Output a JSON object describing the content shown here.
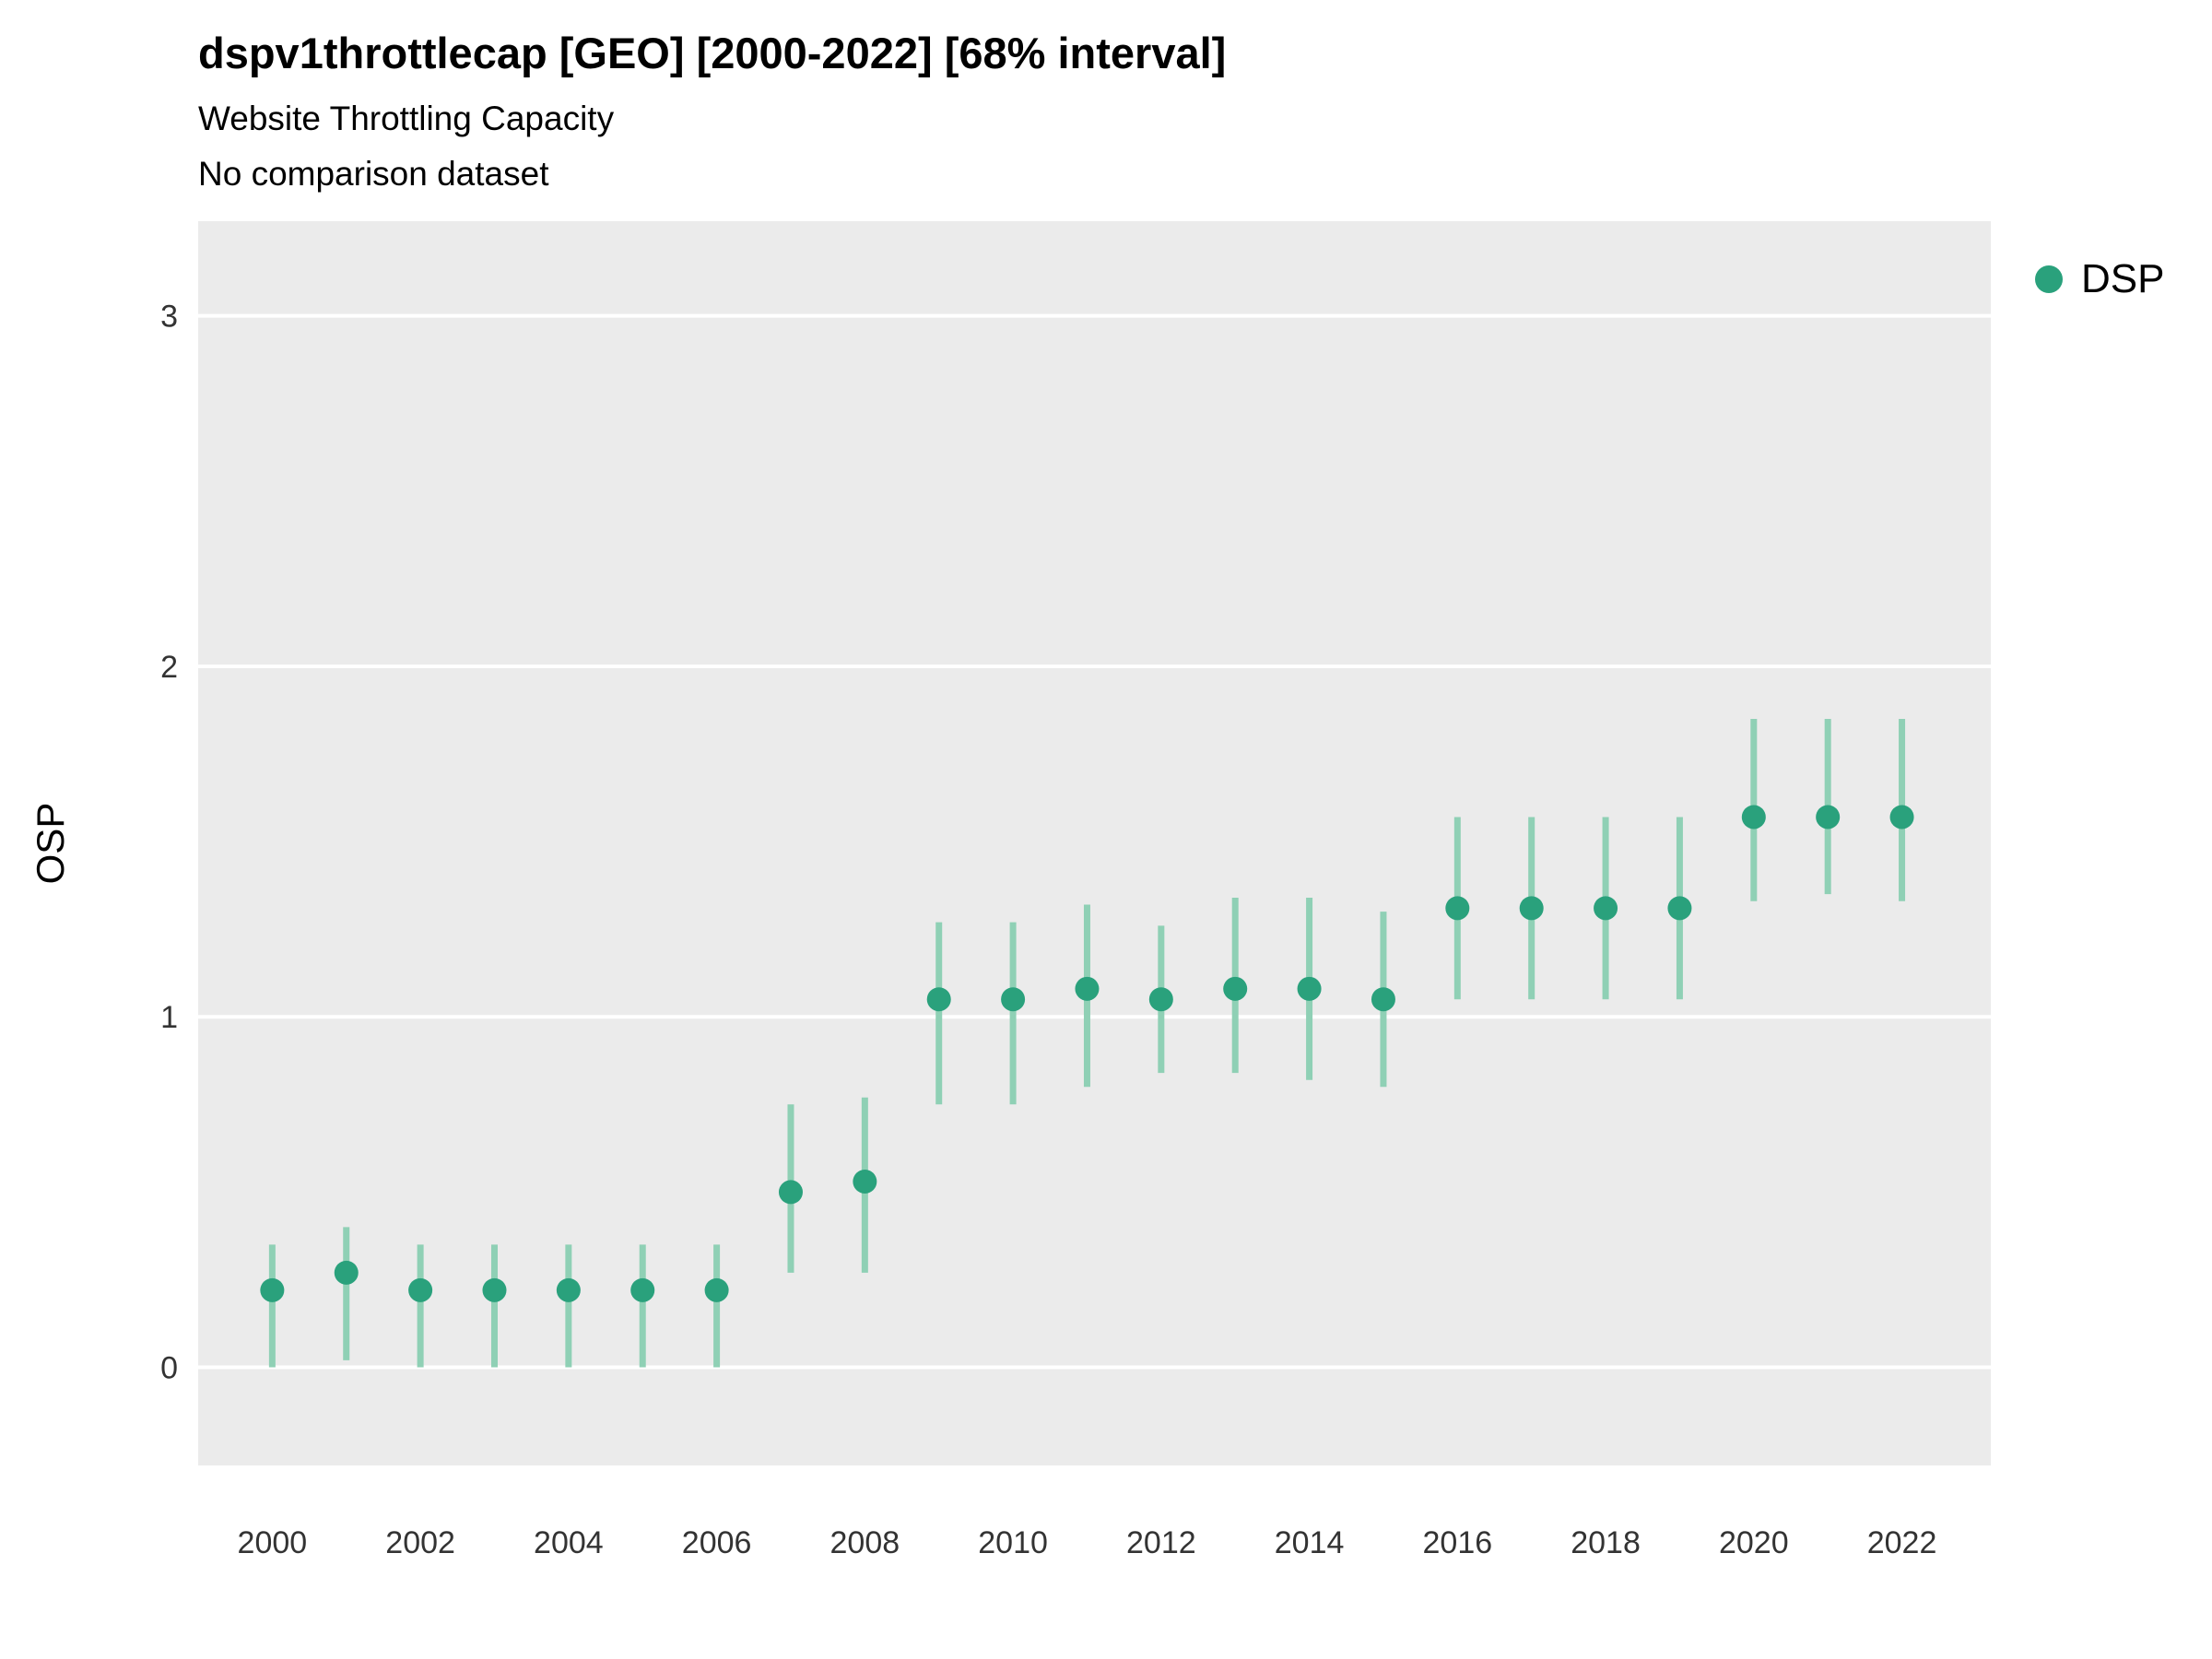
{
  "header": {
    "title": "dspv1throttlecap [GEO] [2000-2022] [68% interval]",
    "subtitle1": "Website Throttling Capacity",
    "subtitle2": "No comparison dataset"
  },
  "legend": {
    "label": "DSP",
    "color": "#2aa17c"
  },
  "axes": {
    "ylabel": "OSP"
  },
  "chart_data": {
    "type": "scatter",
    "title": "dspv1throttlecap [GEO] [2000-2022] [68% interval]",
    "subtitle": "Website Throttling Capacity",
    "note": "No comparison dataset",
    "xlabel": "",
    "ylabel": "OSP",
    "legend_position": "right",
    "grid": "major-horizontal-white-on-gray",
    "x": [
      2000,
      2001,
      2002,
      2003,
      2004,
      2005,
      2006,
      2007,
      2008,
      2009,
      2010,
      2011,
      2012,
      2013,
      2014,
      2015,
      2016,
      2017,
      2018,
      2019,
      2020,
      2021,
      2022
    ],
    "series": [
      {
        "name": "DSP",
        "values": [
          0.22,
          0.27,
          0.22,
          0.22,
          0.22,
          0.22,
          0.22,
          0.5,
          0.53,
          1.05,
          1.05,
          1.08,
          1.05,
          1.08,
          1.08,
          1.05,
          1.31,
          1.31,
          1.31,
          1.31,
          1.57,
          1.57,
          1.57
        ],
        "lower": [
          0.0,
          0.02,
          0.0,
          0.0,
          0.0,
          0.0,
          0.0,
          0.27,
          0.27,
          0.75,
          0.75,
          0.8,
          0.84,
          0.84,
          0.82,
          0.8,
          1.05,
          1.05,
          1.05,
          1.05,
          1.33,
          1.35,
          1.33
        ],
        "upper": [
          0.35,
          0.4,
          0.35,
          0.35,
          0.35,
          0.35,
          0.35,
          0.75,
          0.77,
          1.27,
          1.27,
          1.32,
          1.26,
          1.34,
          1.34,
          1.3,
          1.57,
          1.57,
          1.57,
          1.57,
          1.85,
          1.85,
          1.85
        ]
      }
    ],
    "interval": "68%",
    "xticks": [
      2000,
      2002,
      2004,
      2006,
      2008,
      2010,
      2012,
      2014,
      2016,
      2018,
      2020,
      2022
    ],
    "yticks": [
      0,
      1,
      2,
      3
    ],
    "xlim": [
      1999.0,
      2023.2
    ],
    "ylim": [
      -0.28,
      3.27
    ],
    "colors": {
      "point": "#2aa17c",
      "interval_bar": "#8fd0b5",
      "panel_background": "#ebebeb",
      "gridline": "#ffffff",
      "tick_text": "#333333"
    }
  }
}
